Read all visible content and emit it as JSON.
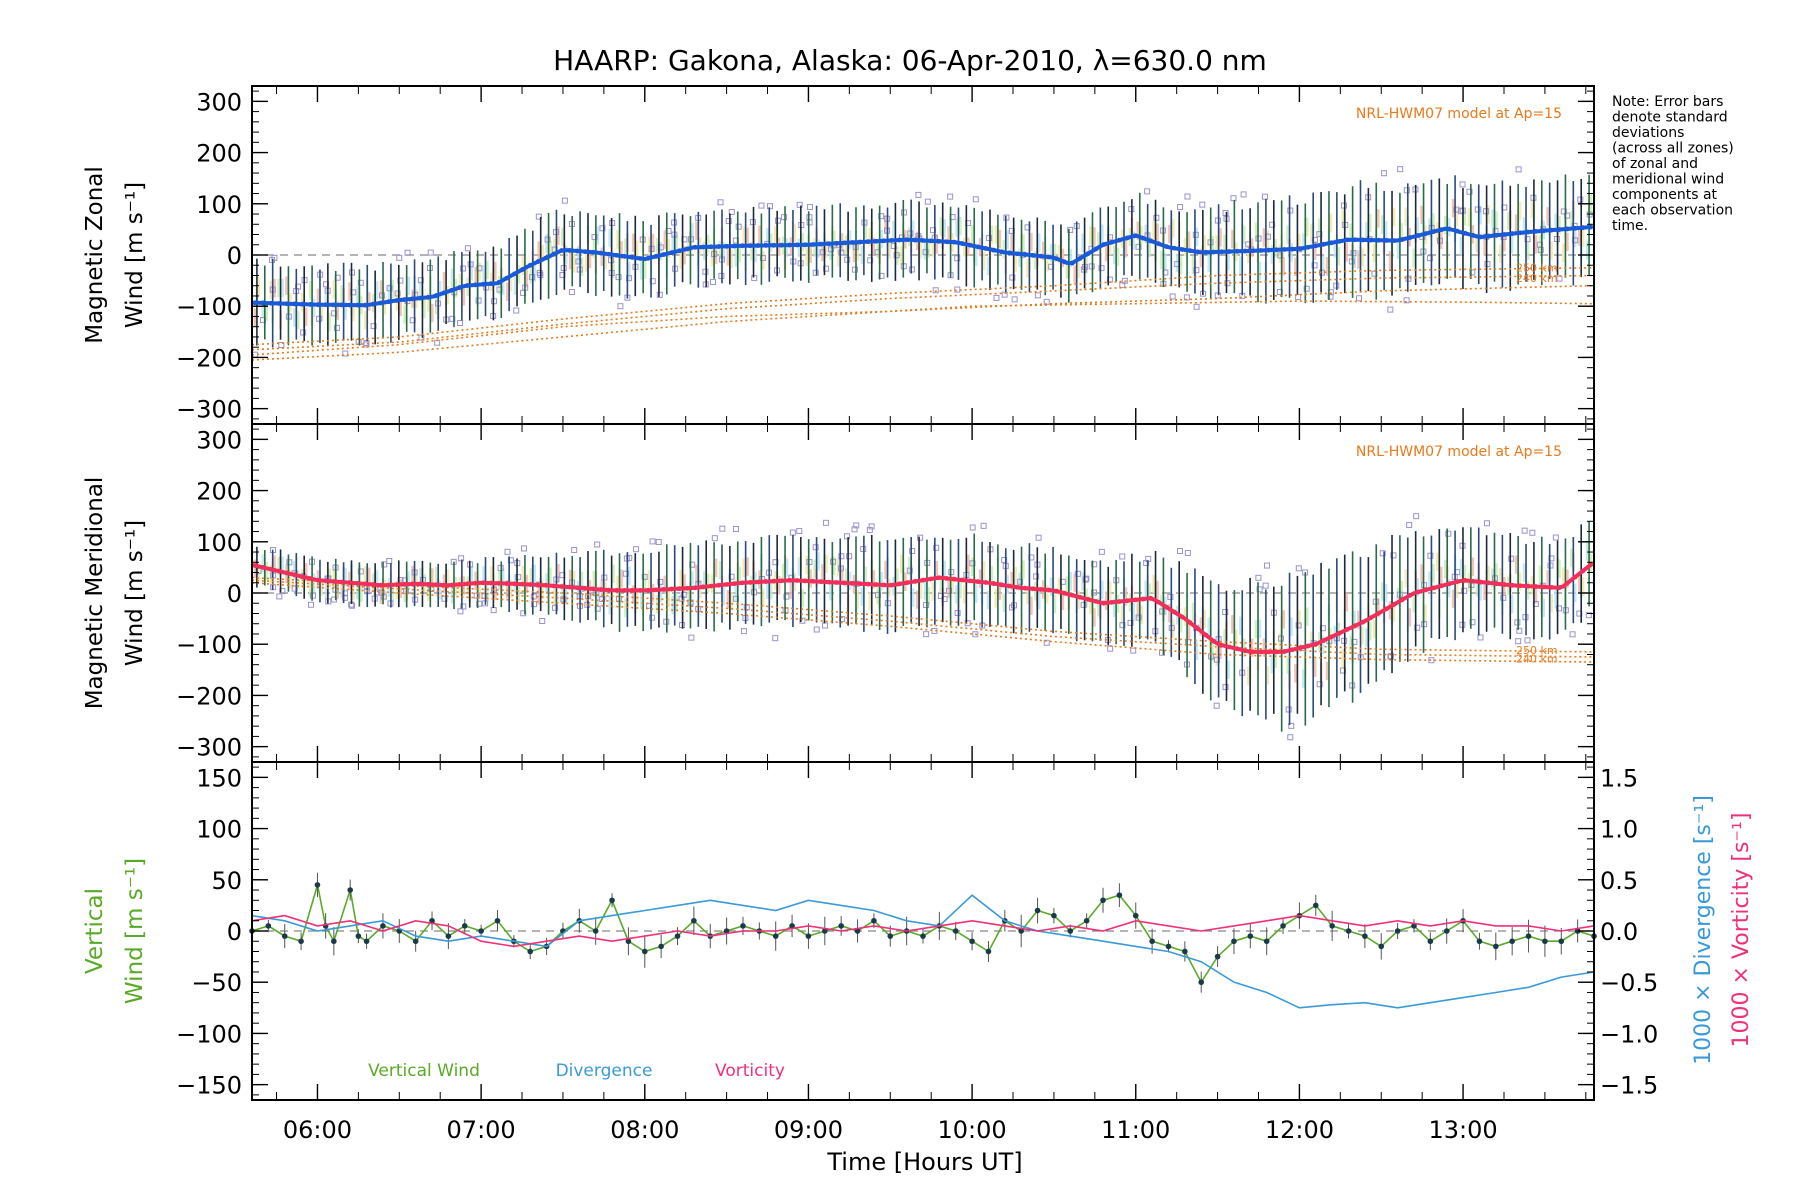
{
  "title": "HAARP: Gakona,  Alaska: 06-Apr-2010, λ=630.0 nm",
  "note": [
    "Note: Error bars",
    "denote standard",
    "deviations",
    "(across all zones)",
    "of zonal and",
    "meridional wind",
    "components at",
    "each observation",
    "time."
  ],
  "xaxis": {
    "label": "Time [Hours UT]",
    "range_hours": [
      5.6,
      13.8
    ],
    "ticks": [
      6,
      7,
      8,
      9,
      10,
      11,
      12,
      13
    ],
    "tick_labels": [
      "06:00",
      "07:00",
      "08:00",
      "09:00",
      "10:00",
      "11:00",
      "12:00",
      "13:00"
    ]
  },
  "colors": {
    "zonal_line": "#1a5ad8",
    "meridional_line": "#f0305a",
    "model": "#e87a1a",
    "vertical": "#5aaa28",
    "divergence": "#3a9ad8",
    "vorticity": "#f0307a",
    "scatter": "#9a92d0"
  },
  "chart_data": [
    {
      "type": "line",
      "panel": "zonal",
      "ylabel_line1": "Magnetic Zonal",
      "ylabel_line2": "Wind [m s⁻¹]",
      "ylim": [
        -330,
        330
      ],
      "yticks": [
        -300,
        -200,
        -100,
        0,
        100,
        200,
        300
      ],
      "ytick_labels": [
        "−300",
        "−200",
        "−100",
        "0",
        "100",
        "200",
        "300"
      ],
      "model_label": "NRL-HWM07 model at Ap=15",
      "model_height_labels": [
        "250 km",
        "240 km"
      ],
      "mean": {
        "x": [
          5.6,
          6.0,
          6.3,
          6.5,
          6.7,
          6.9,
          7.1,
          7.3,
          7.5,
          7.7,
          8.0,
          8.3,
          8.6,
          9.0,
          9.3,
          9.6,
          9.9,
          10.2,
          10.5,
          10.6,
          10.8,
          11.0,
          11.2,
          11.4,
          11.7,
          12.0,
          12.3,
          12.6,
          12.9,
          13.1,
          13.4,
          13.8
        ],
        "y": [
          -93,
          -97,
          -98,
          -88,
          -82,
          -60,
          -55,
          -20,
          10,
          5,
          -8,
          15,
          18,
          20,
          25,
          30,
          25,
          5,
          -5,
          -18,
          20,
          38,
          15,
          5,
          8,
          12,
          30,
          28,
          52,
          35,
          45,
          55
        ]
      },
      "spread": {
        "x": [
          5.6,
          6.5,
          7.0,
          7.5,
          8.0,
          9.0,
          10.0,
          10.5,
          11.0,
          11.5,
          12.0,
          12.5,
          13.0,
          13.8
        ],
        "y": [
          80,
          75,
          70,
          80,
          75,
          70,
          75,
          70,
          80,
          90,
          100,
          110,
          100,
          105
        ]
      },
      "model": [
        {
          "name": "250 km",
          "x": [
            5.6,
            6.5,
            7.5,
            8.5,
            9.5,
            10.5,
            11.5,
            12.5,
            13.8
          ],
          "y": [
            -175,
            -160,
            -125,
            -95,
            -75,
            -60,
            -40,
            -30,
            -25
          ]
        },
        {
          "name": "240 km",
          "x": [
            5.6,
            6.5,
            7.5,
            8.5,
            9.5,
            10.5,
            11.5,
            12.5,
            13.8
          ],
          "y": [
            -185,
            -170,
            -135,
            -105,
            -85,
            -70,
            -55,
            -45,
            -40
          ]
        },
        {
          "name": "",
          "x": [
            5.6,
            6.5,
            7.5,
            8.5,
            9.5,
            10.5,
            11.5,
            12.5,
            13.8
          ],
          "y": [
            -195,
            -175,
            -140,
            -120,
            -110,
            -95,
            -85,
            -70,
            -60
          ]
        },
        {
          "name": "",
          "x": [
            5.6,
            6.5,
            7.5,
            8.5,
            9.5,
            10.0,
            11.0,
            12.0,
            13.0,
            13.8
          ],
          "y": [
            -205,
            -190,
            -160,
            -130,
            -110,
            -100,
            -95,
            -90,
            -92,
            -95
          ]
        }
      ]
    },
    {
      "type": "line",
      "panel": "meridional",
      "ylabel_line1": "Magnetic Meridional",
      "ylabel_line2": "Wind [m s⁻¹]",
      "ylim": [
        -330,
        330
      ],
      "yticks": [
        -300,
        -200,
        -100,
        0,
        100,
        200,
        300
      ],
      "ytick_labels": [
        "−300",
        "−200",
        "−100",
        "0",
        "100",
        "200",
        "300"
      ],
      "model_label": "NRL-HWM07 model at Ap=15",
      "model_height_labels": [
        "250 km",
        "240 km"
      ],
      "mean": {
        "x": [
          5.6,
          5.8,
          6.0,
          6.2,
          6.4,
          6.6,
          6.8,
          7.0,
          7.2,
          7.4,
          7.6,
          7.8,
          8.0,
          8.3,
          8.6,
          8.9,
          9.2,
          9.5,
          9.8,
          10.1,
          10.3,
          10.5,
          10.8,
          11.1,
          11.3,
          11.5,
          11.7,
          11.9,
          12.1,
          12.4,
          12.7,
          13.0,
          13.3,
          13.6,
          13.8
        ],
        "y": [
          55,
          40,
          25,
          20,
          15,
          18,
          15,
          20,
          18,
          15,
          10,
          5,
          5,
          10,
          20,
          25,
          20,
          15,
          30,
          20,
          10,
          5,
          -20,
          -10,
          -50,
          -100,
          -115,
          -115,
          -100,
          -55,
          0,
          25,
          15,
          10,
          60
        ]
      },
      "spread": {
        "x": [
          5.6,
          7.0,
          8.0,
          9.0,
          10.0,
          10.8,
          11.2,
          11.5,
          12.0,
          12.5,
          13.0,
          13.8
        ],
        "y": [
          40,
          45,
          80,
          90,
          85,
          80,
          90,
          120,
          150,
          130,
          100,
          90
        ]
      },
      "model": [
        {
          "name": "250 km",
          "x": [
            5.6,
            6.5,
            7.5,
            8.5,
            9.5,
            10.5,
            11.5,
            12.5,
            13.8
          ],
          "y": [
            30,
            15,
            0,
            -20,
            -45,
            -75,
            -95,
            -110,
            -115
          ]
        },
        {
          "name": "240 km",
          "x": [
            5.6,
            6.5,
            7.5,
            8.5,
            9.5,
            10.5,
            11.5,
            12.5,
            13.8
          ],
          "y": [
            25,
            8,
            -10,
            -30,
            -55,
            -85,
            -105,
            -120,
            -125
          ]
        },
        {
          "name": "",
          "x": [
            5.6,
            6.5,
            7.5,
            8.5,
            9.5,
            10.5,
            11.5,
            12.5,
            13.8
          ],
          "y": [
            20,
            0,
            -20,
            -40,
            -65,
            -95,
            -120,
            -130,
            -135
          ]
        }
      ]
    },
    {
      "type": "line",
      "panel": "vertical",
      "ylabel_line1": "Vertical",
      "ylabel_line2": "Wind [m s⁻¹]",
      "ylim": [
        -165,
        165
      ],
      "yticks": [
        -150,
        -100,
        -50,
        0,
        50,
        100,
        150
      ],
      "ytick_labels": [
        "−150",
        "−100",
        "−50",
        "0",
        "50",
        "100",
        "150"
      ],
      "y2label_div": "1000 × Divergence [s⁻¹]",
      "y2label_vort": "1000 × Vorticity [s⁻¹]",
      "y2lim": [
        -1.65,
        1.65
      ],
      "y2ticks": [
        -1.5,
        -1.0,
        -0.5,
        0.0,
        0.5,
        1.0,
        1.5
      ],
      "y2tick_labels": [
        "−1.5",
        "−1.0",
        "−0.5",
        "0.0",
        "0.5",
        "1.0",
        "1.5"
      ],
      "legend": [
        "Vertical Wind",
        "Divergence",
        "Vorticity"
      ],
      "series": [
        {
          "name": "Vertical Wind",
          "axis": "left",
          "x": [
            5.6,
            5.7,
            5.8,
            5.9,
            6.0,
            6.05,
            6.1,
            6.2,
            6.25,
            6.3,
            6.4,
            6.5,
            6.6,
            6.7,
            6.8,
            6.9,
            7.0,
            7.1,
            7.2,
            7.3,
            7.4,
            7.5,
            7.6,
            7.7,
            7.8,
            7.9,
            8.0,
            8.1,
            8.2,
            8.3,
            8.4,
            8.5,
            8.6,
            8.7,
            8.8,
            8.9,
            9.0,
            9.1,
            9.2,
            9.3,
            9.4,
            9.5,
            9.6,
            9.7,
            9.8,
            9.9,
            10.0,
            10.1,
            10.2,
            10.3,
            10.4,
            10.5,
            10.6,
            10.7,
            10.8,
            10.9,
            11.0,
            11.1,
            11.2,
            11.3,
            11.4,
            11.5,
            11.6,
            11.7,
            11.8,
            11.9,
            12.0,
            12.1,
            12.2,
            12.3,
            12.4,
            12.5,
            12.6,
            12.7,
            12.8,
            12.9,
            13.0,
            13.1,
            13.2,
            13.3,
            13.4,
            13.5,
            13.6,
            13.7,
            13.8
          ],
          "y": [
            0,
            5,
            -5,
            -10,
            45,
            5,
            -10,
            40,
            -5,
            -10,
            5,
            0,
            -10,
            10,
            -5,
            5,
            0,
            10,
            -10,
            -20,
            -15,
            0,
            10,
            0,
            30,
            -10,
            -20,
            -15,
            -5,
            10,
            -5,
            0,
            5,
            0,
            -5,
            5,
            -5,
            0,
            5,
            0,
            10,
            -5,
            0,
            -5,
            5,
            0,
            -10,
            -20,
            10,
            0,
            20,
            15,
            0,
            10,
            30,
            35,
            15,
            -10,
            -15,
            -20,
            -50,
            -25,
            -10,
            -5,
            -10,
            5,
            15,
            25,
            5,
            0,
            -5,
            -15,
            0,
            5,
            -10,
            0,
            10,
            -10,
            -15,
            -10,
            -5,
            -10,
            -10,
            0,
            -5
          ]
        },
        {
          "name": "Divergence",
          "axis": "right",
          "x": [
            5.6,
            5.8,
            6.0,
            6.2,
            6.4,
            6.6,
            6.8,
            7.0,
            7.2,
            7.4,
            7.6,
            7.8,
            8.0,
            8.2,
            8.4,
            8.6,
            8.8,
            9.0,
            9.2,
            9.4,
            9.6,
            9.8,
            10.0,
            10.2,
            10.4,
            10.6,
            10.8,
            11.0,
            11.2,
            11.4,
            11.6,
            11.8,
            12.0,
            12.2,
            12.4,
            12.6,
            12.8,
            13.0,
            13.2,
            13.4,
            13.6,
            13.8
          ],
          "y": [
            0.15,
            0.1,
            0.0,
            0.05,
            0.1,
            -0.05,
            -0.1,
            -0.05,
            -0.1,
            -0.15,
            0.1,
            0.15,
            0.2,
            0.25,
            0.3,
            0.25,
            0.2,
            0.3,
            0.25,
            0.2,
            0.1,
            0.05,
            0.35,
            0.1,
            0.0,
            -0.05,
            -0.1,
            -0.15,
            -0.2,
            -0.3,
            -0.5,
            -0.6,
            -0.75,
            -0.72,
            -0.7,
            -0.75,
            -0.7,
            -0.65,
            -0.6,
            -0.55,
            -0.45,
            -0.4
          ]
        },
        {
          "name": "Vorticity",
          "axis": "right",
          "x": [
            5.6,
            5.8,
            6.0,
            6.2,
            6.4,
            6.6,
            6.8,
            7.0,
            7.2,
            7.4,
            7.6,
            7.8,
            8.0,
            8.2,
            8.4,
            8.6,
            8.8,
            9.0,
            9.2,
            9.4,
            9.6,
            9.8,
            10.0,
            10.2,
            10.4,
            10.6,
            10.8,
            11.0,
            11.2,
            11.4,
            11.6,
            11.8,
            12.0,
            12.2,
            12.4,
            12.6,
            12.8,
            13.0,
            13.2,
            13.4,
            13.6,
            13.8
          ],
          "y": [
            0.1,
            0.15,
            0.05,
            0.1,
            0.0,
            0.1,
            0.05,
            -0.1,
            -0.15,
            -0.1,
            -0.05,
            -0.1,
            -0.05,
            0.0,
            -0.05,
            0.0,
            0.0,
            0.05,
            0.0,
            0.05,
            0.0,
            0.05,
            0.1,
            0.05,
            0.0,
            0.05,
            0.0,
            0.1,
            0.05,
            0.0,
            0.05,
            0.1,
            0.15,
            0.1,
            0.05,
            0.1,
            0.05,
            0.1,
            0.05,
            0.05,
            0.0,
            0.05
          ]
        }
      ]
    }
  ]
}
